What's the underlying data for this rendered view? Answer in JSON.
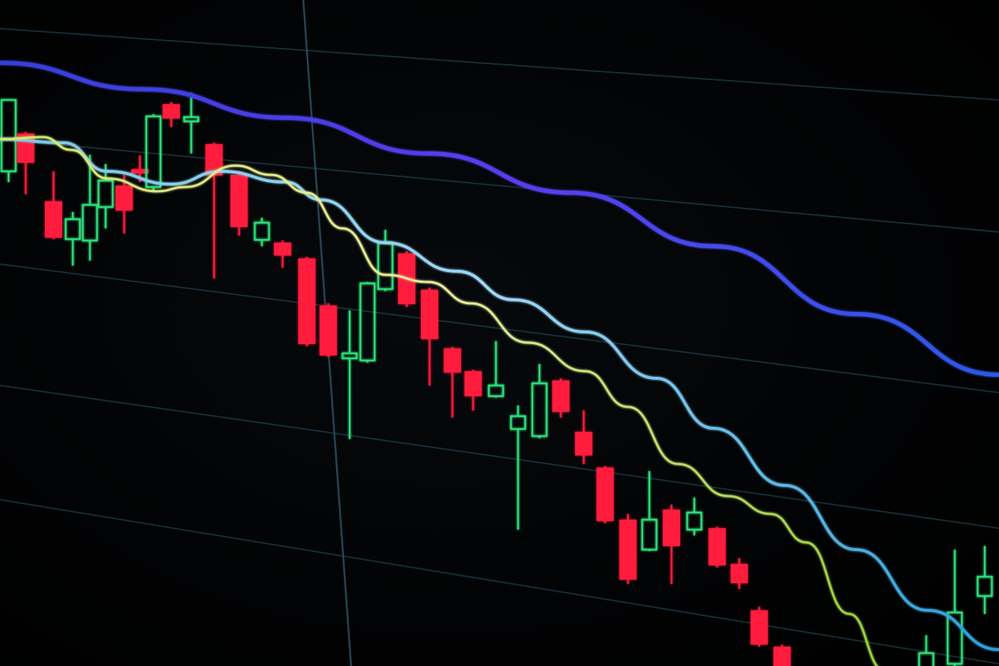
{
  "image": {
    "subject": "candlestick-price-chart-on-screen",
    "colors": {
      "background": "#000000",
      "bullish_candle": "#2fe07a",
      "bearish_candle": "#ff1a3c",
      "slow_average": "#3b3cf0",
      "medium_average": "#4fb8f0",
      "fast_average": "#e8e86a",
      "grid": "#1d3a44"
    }
  }
}
